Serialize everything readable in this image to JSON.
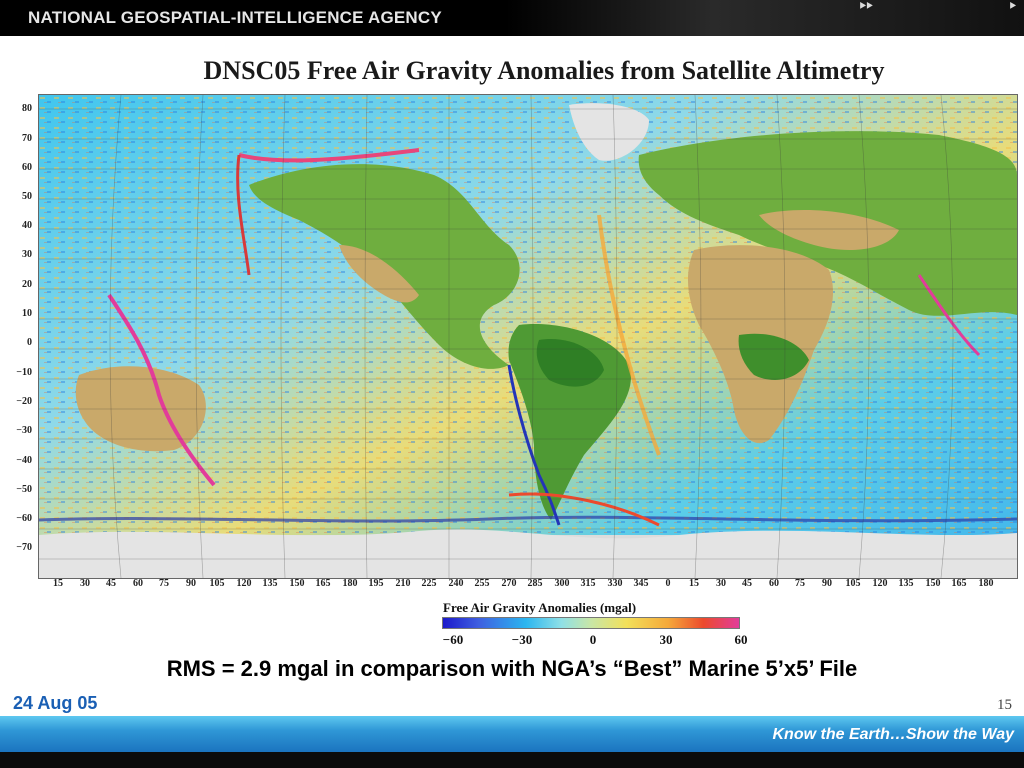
{
  "header": {
    "agency": "NATIONAL GEOSPATIAL-INTELLIGENCE AGENCY",
    "nav_left": "⯈⯈",
    "nav_right": "⯈"
  },
  "map": {
    "title": "DNSC05 Free Air Gravity Anomalies from Satellite Altimetry",
    "lat_labels": [
      "80",
      "70",
      "60",
      "50",
      "40",
      "30",
      "20",
      "10",
      "0",
      "−10",
      "−20",
      "−30",
      "−40",
      "−50",
      "−60",
      "−70"
    ],
    "lon_labels": [
      "15",
      "30",
      "45",
      "60",
      "75",
      "90",
      "105",
      "120",
      "135",
      "150",
      "165",
      "180",
      "195",
      "210",
      "225",
      "240",
      "255",
      "270",
      "285",
      "300",
      "315",
      "330",
      "345",
      "0",
      "15",
      "30",
      "45",
      "60",
      "75",
      "90",
      "105",
      "120",
      "135",
      "150",
      "165",
      "180"
    ],
    "colors": {
      "ocean_low": "#2bb6f0",
      "ocean_mid": "#9ad8e6",
      "ocean_high": "#f2c94c",
      "land": "#6fae3f",
      "desert": "#c9a96a",
      "ice": "#e0e0e0"
    }
  },
  "legend": {
    "title": "Free Air Gravity Anomalies (mgal)",
    "ticks": [
      "−60",
      "−30",
      "0",
      "30",
      "60"
    ]
  },
  "caption": "RMS = 2.9 mgal in comparison with NGA’s “Best” Marine 5’x5’ File",
  "footer": {
    "date": "24 Aug 05",
    "page": "15",
    "tagline": "Know the Earth…Show the Way"
  }
}
